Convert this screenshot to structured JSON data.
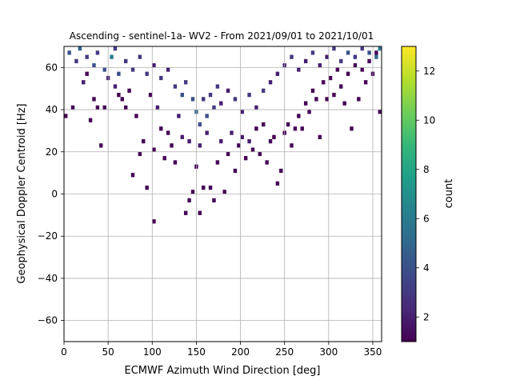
{
  "chart_data": {
    "type": "heatmap",
    "title": "Ascending - sentinel-1a- WV2 - From 2021/09/01 to 2021/10/01",
    "xlabel": "ECMWF Azimuth Wind Direction [deg]",
    "ylabel": "Geophysical Doppler Centroid [Hz]",
    "xlim": [
      0,
      360
    ],
    "ylim": [
      -70,
      70
    ],
    "xticks": [
      0,
      50,
      100,
      150,
      200,
      250,
      300,
      350
    ],
    "yticks": [
      -60,
      -40,
      -20,
      0,
      20,
      40,
      60
    ],
    "grid": true,
    "bin_width_x": 4,
    "bin_height_y": 2,
    "colormap": "viridis",
    "colorbar": {
      "label": "count",
      "range": [
        1,
        13
      ],
      "ticks": [
        2,
        4,
        6,
        8,
        10,
        12
      ],
      "stops": [
        "#440154",
        "#482878",
        "#3e4989",
        "#31688e",
        "#26828e",
        "#1f9e89",
        "#35b779",
        "#6ece58",
        "#b5de2b",
        "#fde725"
      ]
    },
    "counts_note": "",
    "cells": [
      [
        0,
        36,
        1
      ],
      [
        8,
        40,
        1
      ],
      [
        20,
        52,
        2
      ],
      [
        24,
        56,
        1
      ],
      [
        28,
        34,
        1
      ],
      [
        32,
        44,
        1
      ],
      [
        36,
        40,
        1
      ],
      [
        40,
        22,
        1
      ],
      [
        44,
        40,
        1
      ],
      [
        48,
        54,
        2
      ],
      [
        56,
        50,
        2
      ],
      [
        60,
        46,
        1
      ],
      [
        64,
        44,
        1
      ],
      [
        68,
        40,
        1
      ],
      [
        72,
        48,
        1
      ],
      [
        76,
        8,
        1
      ],
      [
        80,
        36,
        1
      ],
      [
        84,
        18,
        1
      ],
      [
        88,
        24,
        1
      ],
      [
        92,
        2,
        1
      ],
      [
        96,
        46,
        1
      ],
      [
        100,
        -14,
        1
      ],
      [
        100,
        20,
        1
      ],
      [
        104,
        40,
        2
      ],
      [
        108,
        30,
        1
      ],
      [
        112,
        16,
        1
      ],
      [
        116,
        28,
        1
      ],
      [
        120,
        22,
        1
      ],
      [
        124,
        14,
        1
      ],
      [
        128,
        36,
        2
      ],
      [
        132,
        26,
        2
      ],
      [
        136,
        -10,
        1
      ],
      [
        140,
        -4,
        1
      ],
      [
        140,
        24,
        2
      ],
      [
        144,
        0,
        1
      ],
      [
        148,
        12,
        1
      ],
      [
        152,
        -10,
        1
      ],
      [
        152,
        22,
        2
      ],
      [
        156,
        2,
        1
      ],
      [
        160,
        28,
        2
      ],
      [
        164,
        2,
        1
      ],
      [
        168,
        -4,
        1
      ],
      [
        172,
        14,
        1
      ],
      [
        176,
        24,
        2
      ],
      [
        180,
        0,
        1
      ],
      [
        184,
        18,
        1
      ],
      [
        188,
        28,
        2
      ],
      [
        192,
        10,
        1
      ],
      [
        196,
        22,
        1
      ],
      [
        200,
        26,
        2
      ],
      [
        204,
        16,
        1
      ],
      [
        208,
        24,
        2
      ],
      [
        212,
        20,
        1
      ],
      [
        216,
        30,
        1
      ],
      [
        220,
        18,
        1
      ],
      [
        224,
        32,
        1
      ],
      [
        228,
        14,
        1
      ],
      [
        232,
        24,
        1
      ],
      [
        236,
        26,
        1
      ],
      [
        240,
        4,
        1
      ],
      [
        244,
        10,
        1
      ],
      [
        248,
        28,
        1
      ],
      [
        252,
        32,
        1
      ],
      [
        256,
        22,
        1
      ],
      [
        260,
        30,
        1
      ],
      [
        264,
        36,
        1
      ],
      [
        268,
        30,
        1
      ],
      [
        272,
        42,
        1
      ],
      [
        276,
        38,
        1
      ],
      [
        280,
        48,
        1
      ],
      [
        284,
        44,
        1
      ],
      [
        288,
        26,
        1
      ],
      [
        292,
        52,
        1
      ],
      [
        296,
        44,
        1
      ],
      [
        300,
        54,
        1
      ],
      [
        304,
        46,
        1
      ],
      [
        308,
        58,
        1
      ],
      [
        312,
        50,
        1
      ],
      [
        316,
        42,
        1
      ],
      [
        320,
        56,
        1
      ],
      [
        324,
        30,
        1
      ],
      [
        328,
        60,
        1
      ],
      [
        332,
        44,
        1
      ],
      [
        336,
        58,
        1
      ],
      [
        340,
        52,
        1
      ],
      [
        344,
        62,
        1
      ],
      [
        348,
        56,
        1
      ],
      [
        352,
        66,
        1
      ],
      [
        356,
        38,
        1
      ],
      [
        4,
        66,
        4
      ],
      [
        12,
        62,
        3
      ],
      [
        16,
        68,
        5
      ],
      [
        24,
        64,
        3
      ],
      [
        32,
        60,
        4
      ],
      [
        36,
        66,
        3
      ],
      [
        44,
        58,
        4
      ],
      [
        52,
        64,
        6
      ],
      [
        56,
        68,
        3
      ],
      [
        60,
        56,
        4
      ],
      [
        68,
        62,
        3
      ],
      [
        76,
        58,
        3
      ],
      [
        84,
        64,
        3
      ],
      [
        92,
        56,
        3
      ],
      [
        100,
        60,
        2
      ],
      [
        108,
        54,
        3
      ],
      [
        116,
        58,
        2
      ],
      [
        124,
        50,
        3
      ],
      [
        132,
        46,
        4
      ],
      [
        136,
        52,
        3
      ],
      [
        144,
        44,
        4
      ],
      [
        148,
        38,
        5
      ],
      [
        152,
        32,
        4
      ],
      [
        156,
        44,
        3
      ],
      [
        160,
        36,
        4
      ],
      [
        164,
        46,
        3
      ],
      [
        168,
        40,
        3
      ],
      [
        172,
        50,
        3
      ],
      [
        176,
        42,
        2
      ],
      [
        184,
        48,
        2
      ],
      [
        192,
        44,
        3
      ],
      [
        200,
        38,
        2
      ],
      [
        208,
        46,
        3
      ],
      [
        216,
        40,
        2
      ],
      [
        224,
        48,
        3
      ],
      [
        232,
        52,
        2
      ],
      [
        240,
        56,
        2
      ],
      [
        248,
        60,
        2
      ],
      [
        256,
        64,
        3
      ],
      [
        264,
        58,
        2
      ],
      [
        272,
        62,
        2
      ],
      [
        280,
        66,
        3
      ],
      [
        288,
        60,
        2
      ],
      [
        296,
        64,
        2
      ],
      [
        304,
        68,
        3
      ],
      [
        312,
        62,
        3
      ],
      [
        320,
        66,
        4
      ],
      [
        328,
        64,
        3
      ],
      [
        336,
        68,
        3
      ],
      [
        344,
        66,
        4
      ],
      [
        352,
        64,
        5
      ],
      [
        356,
        68,
        6
      ]
    ]
  }
}
